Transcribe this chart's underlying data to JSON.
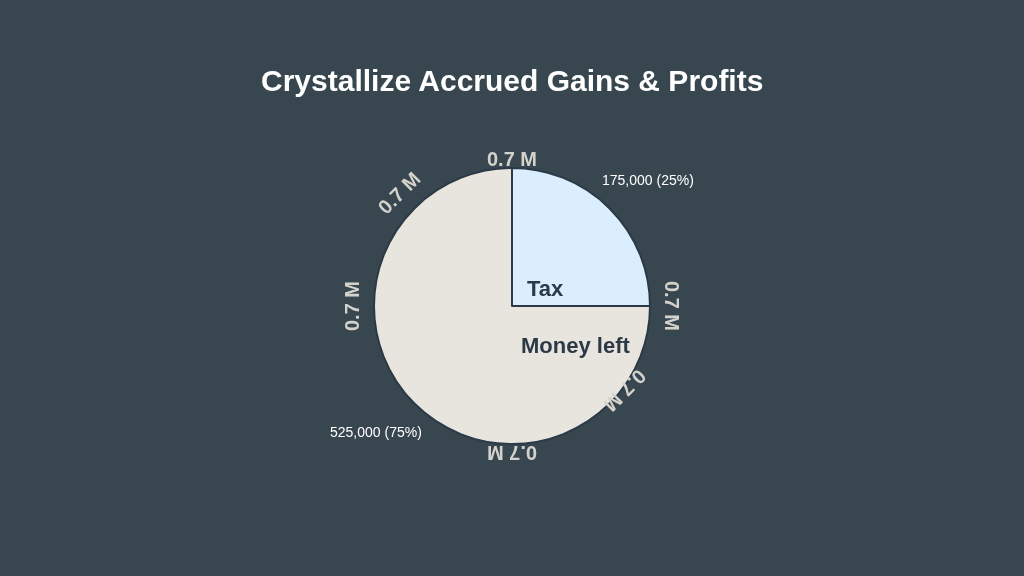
{
  "chart_data": {
    "type": "pie",
    "title": "Crystallize Accrued Gains & Profits",
    "categories": [
      "Tax",
      "Money left"
    ],
    "values": [
      175000,
      525000
    ],
    "colors": [
      "#dbeefd",
      "#e8e5df"
    ],
    "value_labels": [
      "175,000 (25%)",
      "525,000 (75%)"
    ],
    "annotations": [
      "0.7 M",
      "0.7 M",
      "0.7 M",
      "0.7 M",
      "0.7 M",
      "0.7 M"
    ]
  }
}
